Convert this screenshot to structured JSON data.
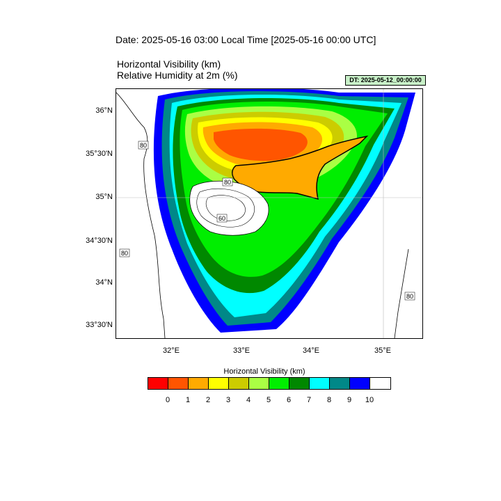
{
  "header": {
    "title": "Date: 2025-05-16  03:00 Local Time [2025-05-16  00:00 UTC]",
    "field1": "Horizontal Visibility   (km)",
    "field2": "Relative Humidity at 2m   (%)",
    "dt_badge": "DT: 2025-05-12_00:00:00"
  },
  "map": {
    "lat_labels": [
      "36°N",
      "35°30'N",
      "35°N",
      "34°30'N",
      "34°N",
      "33°30'N"
    ],
    "lon_labels": [
      "32°E",
      "33°E",
      "34°E",
      "35°E"
    ],
    "contour_labels": [
      "80",
      "80",
      "80",
      "80",
      "60"
    ]
  },
  "colorbar": {
    "title": "Horizontal Visibility  (km)",
    "colors": [
      "#ff0000",
      "#ff5500",
      "#ffaa00",
      "#ffff00",
      "#cccc00",
      "#aaff44",
      "#00ee00",
      "#008800",
      "#00ffff",
      "#008888",
      "#0000ff",
      "#ffffff"
    ],
    "tick_labels": [
      "0",
      "1",
      "2",
      "3",
      "4",
      "5",
      "6",
      "7",
      "8",
      "9",
      "10"
    ]
  }
}
